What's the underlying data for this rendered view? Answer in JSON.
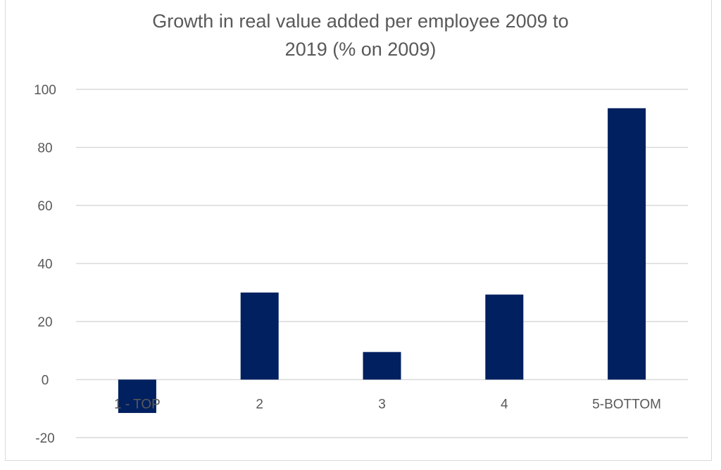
{
  "chart_data": {
    "type": "bar",
    "title_lines": [
      "Growth in real value added per employee 2009 to",
      "2019 (% on 2009)"
    ],
    "categories": [
      "1 - TOP",
      "2",
      "3",
      "4",
      "5-BOTTOM"
    ],
    "values": [
      -11.5,
      30,
      9.5,
      29.3,
      93.5
    ],
    "ylim": [
      -20,
      100
    ],
    "yticks": [
      -20,
      0,
      20,
      40,
      60,
      80,
      100
    ],
    "xlabel": "",
    "ylabel": "",
    "grid": true,
    "legend": "none",
    "colors": {
      "bar": "#002060",
      "grid": "#d9d9d9",
      "text": "#595959"
    }
  }
}
